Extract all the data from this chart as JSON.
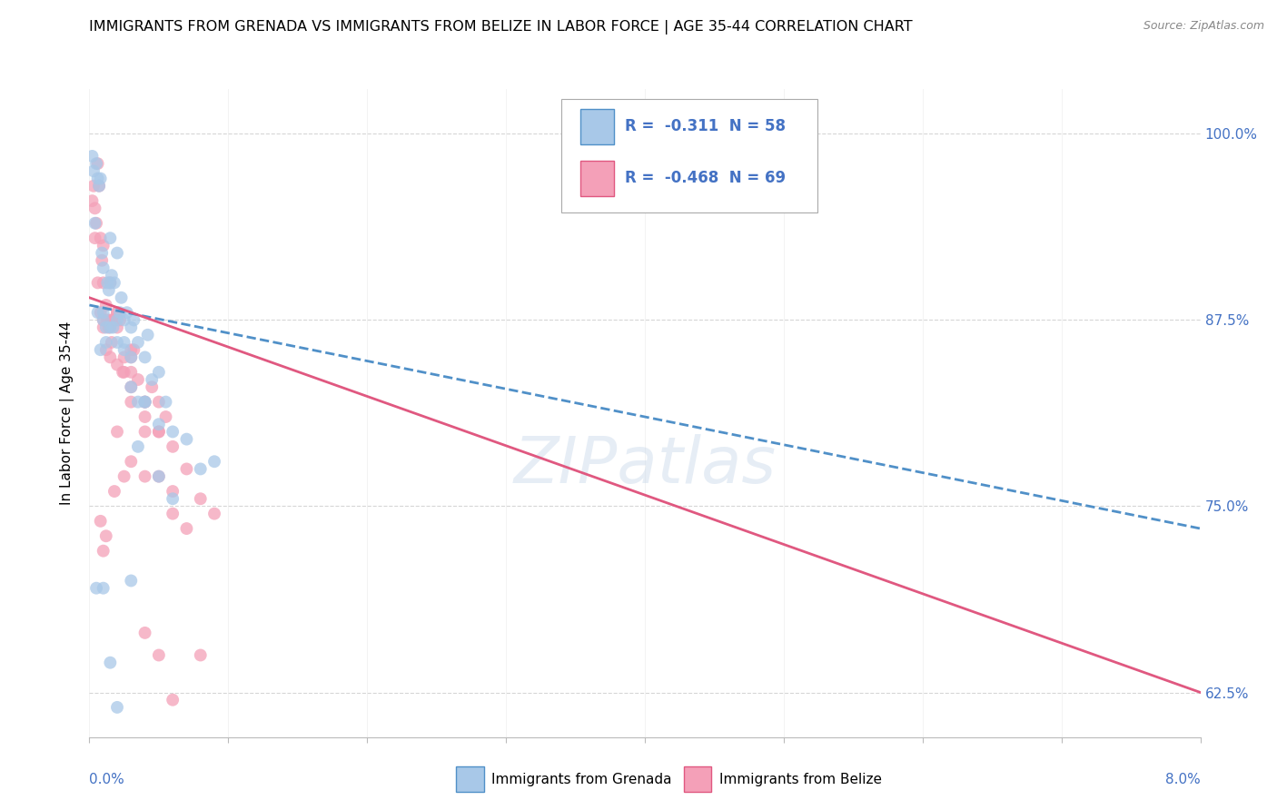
{
  "title": "IMMIGRANTS FROM GRENADA VS IMMIGRANTS FROM BELIZE IN LABOR FORCE | AGE 35-44 CORRELATION CHART",
  "source": "Source: ZipAtlas.com",
  "xlabel_bottom_left": "0.0%",
  "xlabel_bottom_right": "8.0%",
  "ylabel": "In Labor Force | Age 35-44",
  "y_ticks": [
    "62.5%",
    "75.0%",
    "87.5%",
    "100.0%"
  ],
  "y_tick_vals": [
    0.625,
    0.75,
    0.875,
    1.0
  ],
  "xlim": [
    0.0,
    0.08
  ],
  "ylim": [
    0.595,
    1.03
  ],
  "legend_label_1": "Immigrants from Grenada",
  "legend_label_2": "Immigrants from Belize",
  "R1": -0.311,
  "N1": 58,
  "R2": -0.468,
  "N2": 69,
  "color_grenada": "#a8c8e8",
  "color_belize": "#f4a0b8",
  "color_line_grenada": "#5090c8",
  "color_line_belize": "#e05880",
  "title_fontsize": 11.5,
  "axis_label_fontsize": 11,
  "tick_fontsize": 11,
  "legend_fontsize": 12,
  "scatter_alpha": 0.75,
  "scatter_size": 100,
  "line_grenada_x0": 0.0,
  "line_grenada_y0": 0.885,
  "line_grenada_x1": 0.08,
  "line_grenada_y1": 0.735,
  "line_belize_x0": 0.0,
  "line_belize_y0": 0.89,
  "line_belize_x1": 0.08,
  "line_belize_y1": 0.625,
  "grenada_x": [
    0.0002,
    0.0003,
    0.0005,
    0.0006,
    0.0007,
    0.0008,
    0.0009,
    0.001,
    0.001,
    0.0012,
    0.0013,
    0.0014,
    0.0015,
    0.0015,
    0.0016,
    0.0017,
    0.0018,
    0.002,
    0.002,
    0.0022,
    0.0023,
    0.0025,
    0.0025,
    0.0027,
    0.003,
    0.003,
    0.0032,
    0.0035,
    0.0035,
    0.004,
    0.004,
    0.0042,
    0.0045,
    0.005,
    0.005,
    0.0055,
    0.006,
    0.007,
    0.008,
    0.009,
    0.0004,
    0.0006,
    0.0008,
    0.001,
    0.0012,
    0.0015,
    0.002,
    0.0025,
    0.003,
    0.004,
    0.0005,
    0.001,
    0.0015,
    0.002,
    0.003,
    0.0035,
    0.005,
    0.006
  ],
  "grenada_y": [
    0.985,
    0.975,
    0.98,
    0.97,
    0.965,
    0.97,
    0.92,
    0.88,
    0.91,
    0.87,
    0.9,
    0.895,
    0.93,
    0.87,
    0.905,
    0.87,
    0.9,
    0.875,
    0.92,
    0.88,
    0.89,
    0.875,
    0.86,
    0.88,
    0.87,
    0.83,
    0.875,
    0.86,
    0.82,
    0.85,
    0.82,
    0.865,
    0.835,
    0.84,
    0.805,
    0.82,
    0.8,
    0.795,
    0.775,
    0.78,
    0.94,
    0.88,
    0.855,
    0.875,
    0.86,
    0.9,
    0.86,
    0.855,
    0.85,
    0.82,
    0.695,
    0.695,
    0.645,
    0.615,
    0.7,
    0.79,
    0.77,
    0.755
  ],
  "belize_x": [
    0.0002,
    0.0003,
    0.0004,
    0.0005,
    0.0006,
    0.0007,
    0.0008,
    0.0009,
    0.001,
    0.001,
    0.0012,
    0.0013,
    0.0014,
    0.0015,
    0.0016,
    0.0017,
    0.0018,
    0.002,
    0.002,
    0.0022,
    0.0024,
    0.0025,
    0.003,
    0.003,
    0.0032,
    0.0035,
    0.004,
    0.0045,
    0.005,
    0.005,
    0.0055,
    0.006,
    0.007,
    0.008,
    0.009,
    0.0004,
    0.0006,
    0.0008,
    0.001,
    0.0012,
    0.0015,
    0.002,
    0.0025,
    0.003,
    0.004,
    0.001,
    0.0015,
    0.002,
    0.003,
    0.004,
    0.0008,
    0.001,
    0.0012,
    0.0018,
    0.002,
    0.0025,
    0.003,
    0.004,
    0.005,
    0.006,
    0.007,
    0.008,
    0.003,
    0.004,
    0.005,
    0.006,
    0.004,
    0.005,
    0.006
  ],
  "belize_y": [
    0.955,
    0.965,
    0.95,
    0.94,
    0.98,
    0.965,
    0.93,
    0.915,
    0.9,
    0.875,
    0.885,
    0.875,
    0.87,
    0.875,
    0.86,
    0.875,
    0.875,
    0.88,
    0.87,
    0.875,
    0.84,
    0.85,
    0.85,
    0.82,
    0.855,
    0.835,
    0.82,
    0.83,
    0.82,
    0.8,
    0.81,
    0.79,
    0.775,
    0.755,
    0.745,
    0.93,
    0.9,
    0.88,
    0.87,
    0.855,
    0.85,
    0.845,
    0.84,
    0.83,
    0.8,
    0.925,
    0.9,
    0.88,
    0.855,
    0.82,
    0.74,
    0.72,
    0.73,
    0.76,
    0.8,
    0.77,
    0.78,
    0.77,
    0.77,
    0.745,
    0.735,
    0.65,
    0.84,
    0.81,
    0.8,
    0.76,
    0.665,
    0.65,
    0.62
  ]
}
